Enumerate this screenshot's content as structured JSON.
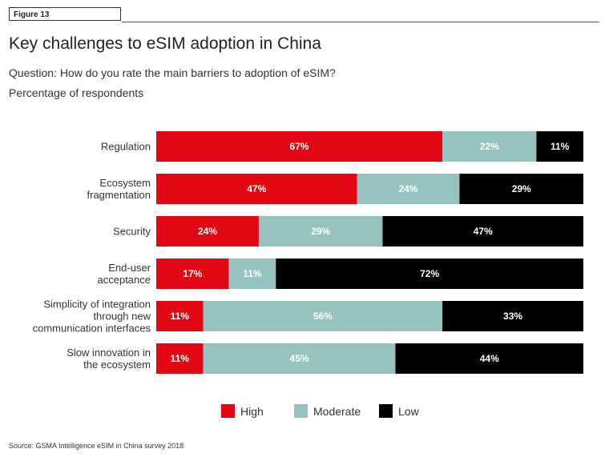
{
  "figure_tag": "Figure 13",
  "title": "Key challenges to eSIM adoption in China",
  "subtitle": "Question: How do you rate the main barriers to adoption of eSIM?",
  "subtitle2": "Percentage of respondents",
  "source": "Source: GSMA Intelligence eSIM in China survey 2018",
  "chart_data": {
    "type": "bar",
    "orientation": "horizontal",
    "stacked": true,
    "categories": [
      [
        "Regulation"
      ],
      [
        "Ecosystem",
        "fragmentation"
      ],
      [
        "Security"
      ],
      [
        "End-user",
        "acceptance"
      ],
      [
        "Simplicity of integration",
        "through new",
        "communication interfaces"
      ],
      [
        "Slow innovation in",
        "the ecosystem"
      ]
    ],
    "series": [
      {
        "name": "High",
        "color": "#e30613",
        "label_color": "#ffffff",
        "values": [
          67,
          47,
          24,
          17,
          11,
          11
        ]
      },
      {
        "name": "Moderate",
        "color": "#96c3c0",
        "label_color": "#ffffff",
        "values": [
          22,
          24,
          29,
          11,
          56,
          45
        ]
      },
      {
        "name": "Low",
        "color": "#000000",
        "label_color": "#ffffff",
        "values": [
          11,
          29,
          47,
          72,
          33,
          44
        ]
      }
    ],
    "value_suffix": "%",
    "xlim": [
      0,
      100
    ],
    "grid": false,
    "legend_position": "bottom"
  }
}
